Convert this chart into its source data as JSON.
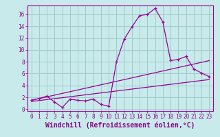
{
  "xlabel": "Windchill (Refroidissement éolien,°C)",
  "bg_color": "#c8eaea",
  "grid_color": "#a0cccc",
  "line_color": "#990099",
  "x_ticks": [
    0,
    1,
    2,
    3,
    4,
    5,
    6,
    7,
    8,
    9,
    10,
    11,
    12,
    13,
    14,
    15,
    16,
    17,
    18,
    19,
    20,
    21,
    22,
    23
  ],
  "y_ticks": [
    0,
    2,
    4,
    6,
    8,
    10,
    12,
    14,
    16
  ],
  "ylim": [
    -0.3,
    17.5
  ],
  "xlim": [
    -0.5,
    23.5
  ],
  "line1_x": [
    0,
    1,
    2,
    3,
    4,
    5,
    6,
    7,
    8,
    9,
    10,
    11,
    12,
    13,
    14,
    15,
    16,
    17,
    18,
    19,
    20,
    21,
    22,
    23
  ],
  "line1_y": [
    1.5,
    1.8,
    2.2,
    1.2,
    0.3,
    1.7,
    1.5,
    1.4,
    1.7,
    0.8,
    0.5,
    8.0,
    11.8,
    13.9,
    15.8,
    16.0,
    17.0,
    14.7,
    8.2,
    8.4,
    8.9,
    6.8,
    6.1,
    5.5
  ],
  "line2_x": [
    0,
    23
  ],
  "line2_y": [
    1.5,
    8.2
  ],
  "line3_x": [
    0,
    23
  ],
  "line3_y": [
    1.3,
    5.0
  ],
  "font_color": "#880088",
  "tick_fontsize": 5.5,
  "label_fontsize": 7.0,
  "fig_width": 3.2,
  "fig_height": 2.0,
  "fig_dpi": 100
}
